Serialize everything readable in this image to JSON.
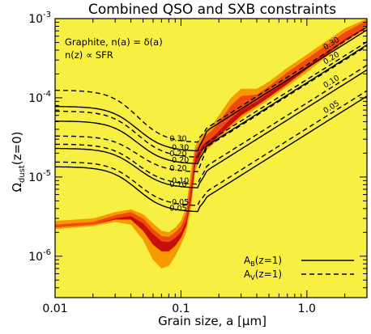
{
  "chart_data": {
    "type": "line",
    "title": "Combined QSO and SXB constraints",
    "xlabel": "Grain size, a [μm]",
    "ylabel_main": "Ω",
    "ylabel_sub": "dust",
    "ylabel_tail": "(z=0)",
    "xscale": "log",
    "yscale": "log",
    "xlim": [
      0.01,
      3.0
    ],
    "ylim": [
      3e-07,
      0.001
    ],
    "x_ticks": [
      {
        "value": 0.01,
        "label": "0.01"
      },
      {
        "value": 0.1,
        "label": "0.1"
      },
      {
        "value": 1.0,
        "label": "1.0"
      }
    ],
    "y_ticks": [
      {
        "value": 1e-06,
        "base": "10",
        "exp": "-6"
      },
      {
        "value": 1e-05,
        "base": "10",
        "exp": "-5"
      },
      {
        "value": 0.0001,
        "base": "10",
        "exp": "-4"
      },
      {
        "value": 0.001,
        "base": "10",
        "exp": "-3"
      }
    ],
    "annotations": [
      "Graphite, n(a) = δ(a)",
      "n(z) ∝ SFR"
    ],
    "legend": {
      "placement": "bottom-right",
      "entries": [
        {
          "label_base": "A",
          "label_sub": "B",
          "label_tail": "(z=1)",
          "style": "solid"
        },
        {
          "label_base": "A",
          "label_sub": "V",
          "label_tail": "(z=1)",
          "style": "dashed"
        }
      ]
    },
    "colors": {
      "background": "#f7f043",
      "region_orange": "#f79a00",
      "region_red_orange": "#ef4a10",
      "region_dark_red": "#c8100a",
      "lines": "#000000"
    },
    "regions": {
      "x": [
        0.01,
        0.02,
        0.03,
        0.04,
        0.05,
        0.06,
        0.07,
        0.08,
        0.09,
        0.1,
        0.11,
        0.12,
        0.13,
        0.15,
        0.18,
        0.2,
        0.25,
        0.3,
        0.4,
        0.5,
        0.7,
        1.0,
        1.5,
        2.0,
        3.0
      ],
      "outer_top": [
        2.8e-06,
        3e-06,
        3.6e-06,
        3.9e-06,
        3.4e-06,
        2.6e-06,
        2.1e-06,
        2e-06,
        2.3e-06,
        2.8e-06,
        4.2e-06,
        1.2e-05,
        2.5e-05,
        3.5e-05,
        4.7e-05,
        6e-05,
        0.0001,
        0.00013,
        0.00013,
        0.00016,
        0.00024,
        0.00035,
        0.00055,
        0.00075,
        0.001
      ],
      "mid_top": [
        2.5e-06,
        2.7e-06,
        3.3e-06,
        3.6e-06,
        3e-06,
        2.2e-06,
        1.8e-06,
        1.75e-06,
        2e-06,
        2.4e-06,
        3.5e-06,
        9e-06,
        2.2e-05,
        3.1e-05,
        4e-05,
        5e-05,
        8e-05,
        0.000105,
        0.00011,
        0.00014,
        0.00021,
        0.00031,
        0.00049,
        0.00067,
        0.00095
      ],
      "inner_top": [
        2.3e-06,
        2.5e-06,
        3e-06,
        3.2e-06,
        2.6e-06,
        1.9e-06,
        1.55e-06,
        1.5e-06,
        1.7e-06,
        2e-06,
        2.8e-06,
        6.5e-06,
        1.8e-05,
        2.6e-05,
        3.2e-05,
        3.8e-05,
        5.5e-05,
        7e-05,
        9e-05,
        0.000115,
        0.00017,
        0.00025,
        0.0004,
        0.00055,
        0.0008
      ],
      "bottom_outer": [
        2.2e-06,
        2.4e-06,
        2.7e-06,
        2.5e-06,
        1.6e-06,
        9e-07,
        7e-07,
        7.5e-07,
        1e-06,
        1.4e-06,
        2e-06,
        4e-06,
        1.2e-05,
        2e-05,
        2.6e-05,
        3e-05,
        4.2e-05,
        5.5e-05,
        7.5e-05,
        9.5e-05,
        0.00014,
        0.00021,
        0.00035,
        0.0005,
        0.00075
      ],
      "bottom_inner": [
        2.3e-06,
        2.5e-06,
        2.9e-06,
        2.9e-06,
        2.1e-06,
        1.4e-06,
        1.15e-06,
        1.15e-06,
        1.35e-06,
        1.7e-06,
        2.4e-06,
        5e-06,
        1.4e-05,
        2.2e-05,
        2.8e-05,
        3.3e-05,
        4.6e-05,
        6e-05,
        8e-05,
        0.000102,
        0.00015,
        0.00023,
        0.00037,
        0.00052,
        0.00077
      ]
    },
    "series": [
      {
        "label": "0.30",
        "style": "dashed",
        "low_plateau": 0.000125,
        "low_min": 2.7e-05,
        "high_amp": 0.00026
      },
      {
        "label": "0.30",
        "style": "solid",
        "low_plateau": 7.8e-05,
        "low_min": 2.1e-05,
        "high_amp": 0.00024
      },
      {
        "label": "0.20",
        "style": "dashed",
        "low_plateau": 6.8e-05,
        "low_min": 1.75e-05,
        "high_amp": 0.00017
      },
      {
        "label": "0.20",
        "style": "solid",
        "low_plateau": 5.1e-05,
        "low_min": 1.45e-05,
        "high_amp": 0.000155
      },
      {
        "label": "0.20",
        "style": "dashed",
        "low_plateau": 3.3e-05,
        "low_min": 1.15e-05,
        "high_amp": 0.00015
      },
      {
        "label": "0.10",
        "style": "dashed",
        "low_plateau": 2.6e-05,
        "low_min": 8e-06,
        "high_amp": 8.6e-05
      },
      {
        "label": "0.10",
        "style": "solid",
        "low_plateau": 2.3e-05,
        "low_min": 7.2e-06,
        "high_amp": 7.5e-05
      },
      {
        "label": "0.05",
        "style": "dashed",
        "low_plateau": 1.55e-05,
        "low_min": 4.3e-06,
        "high_amp": 4.1e-05
      },
      {
        "label": "0.05",
        "style": "solid",
        "low_plateau": 1.35e-05,
        "low_min": 3.6e-06,
        "high_amp": 3.5e-05
      }
    ]
  }
}
